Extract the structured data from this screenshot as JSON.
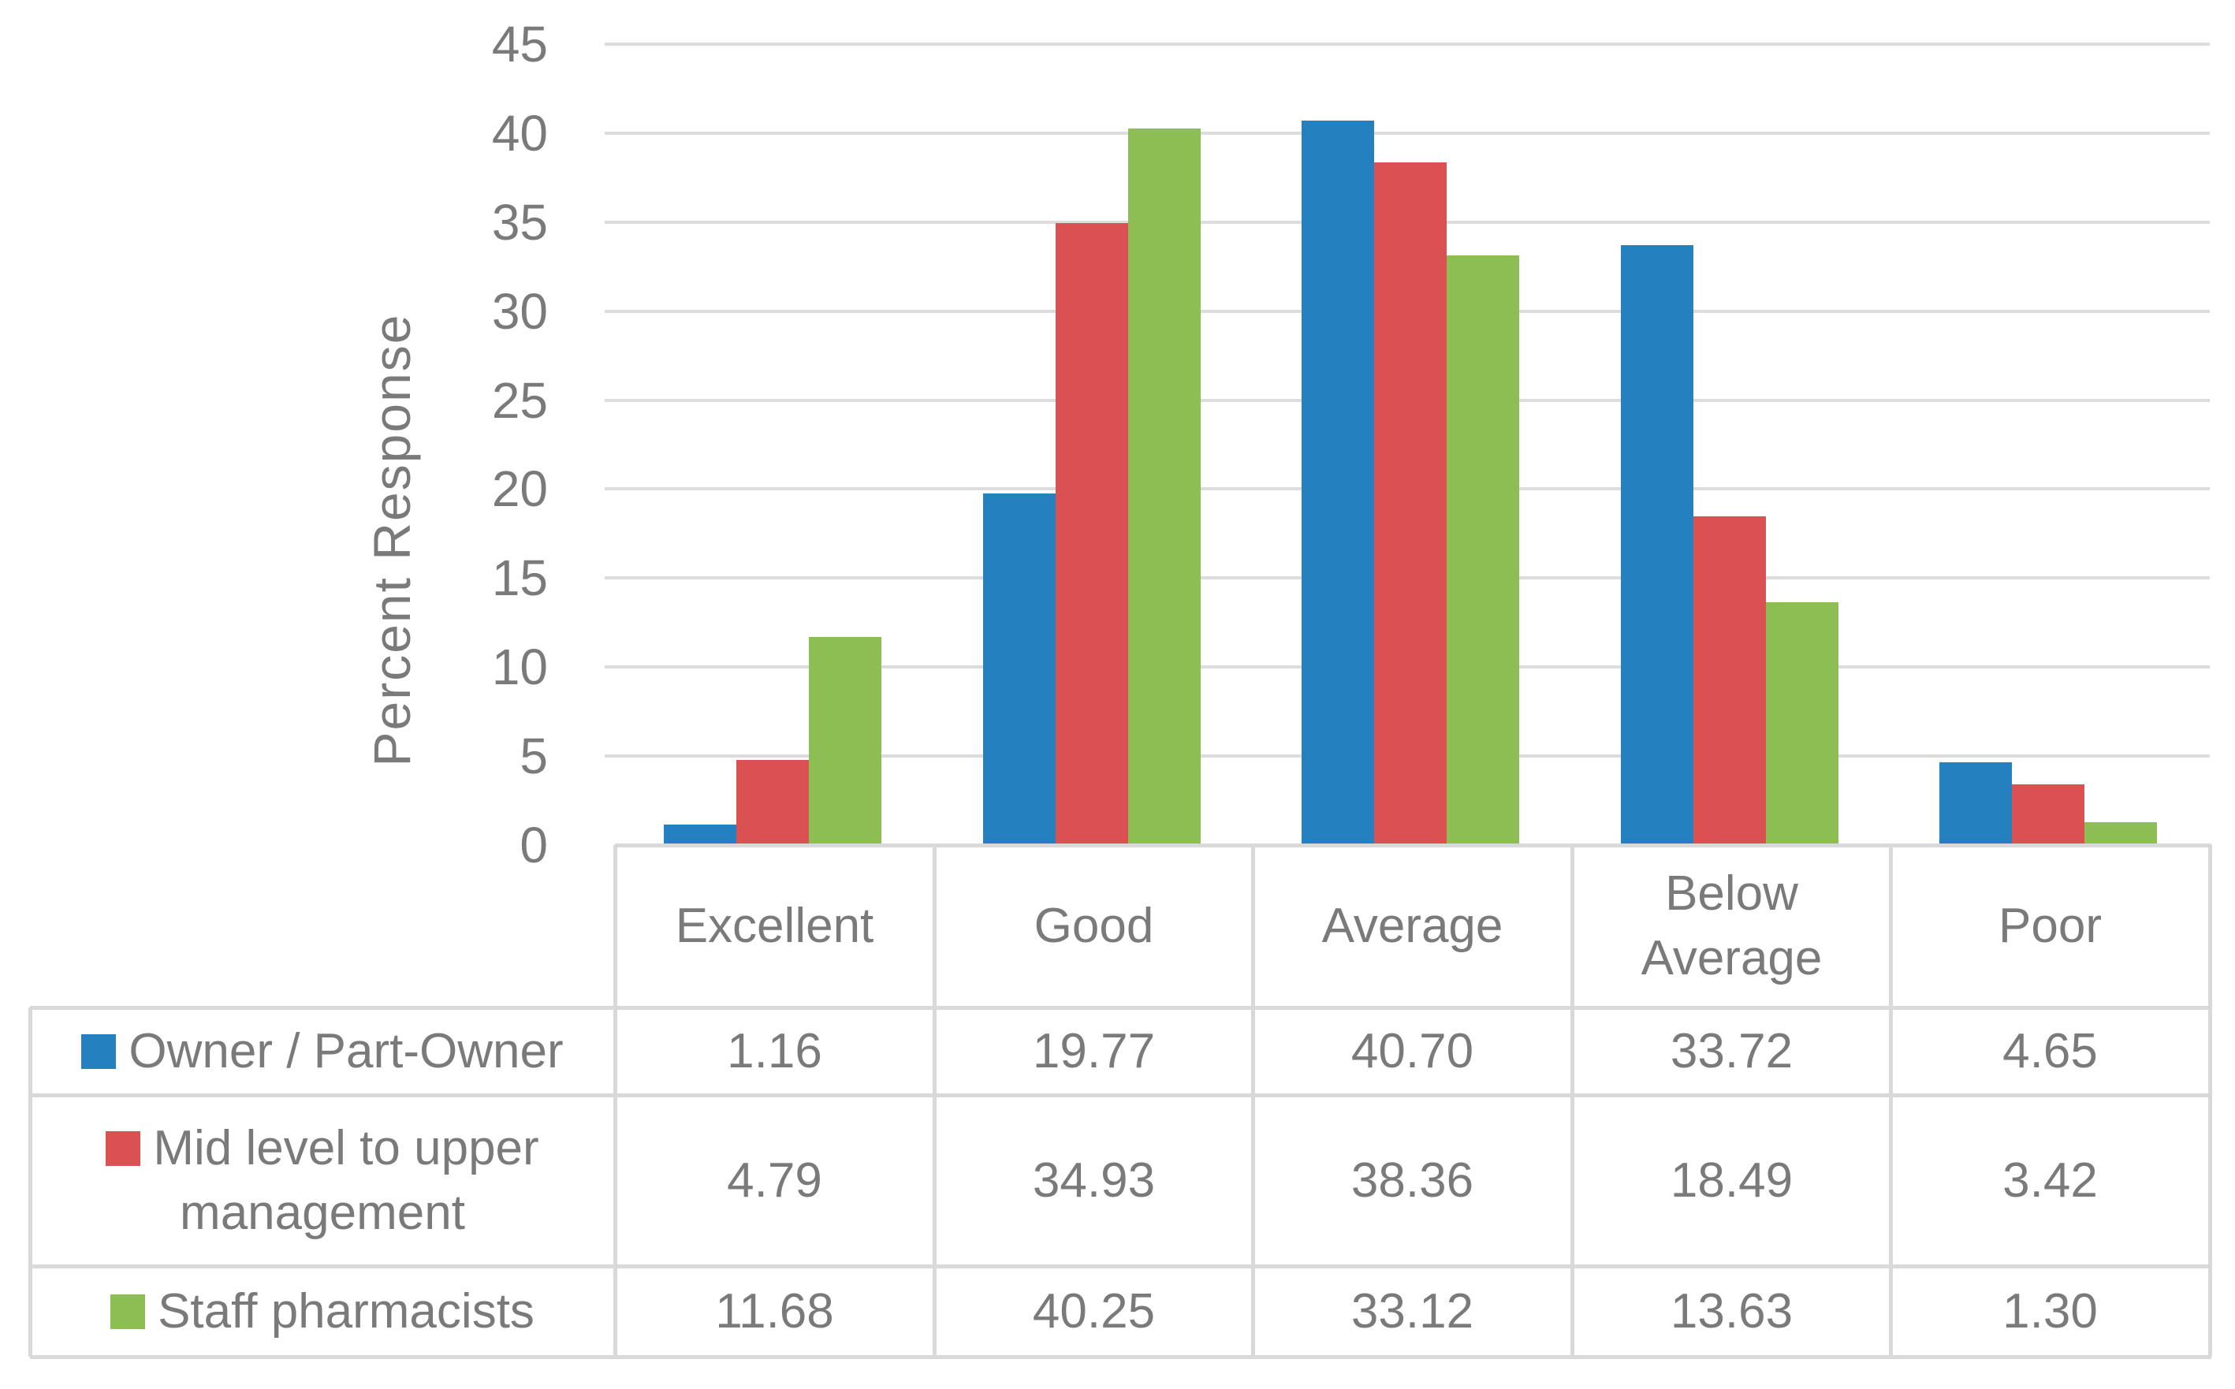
{
  "chart_data": {
    "type": "bar",
    "title": "",
    "xlabel": "",
    "ylabel": "Percent Response",
    "categories": [
      "Excellent",
      "Good",
      "Average",
      "Below Average",
      "Poor"
    ],
    "series": [
      {
        "name": "Owner / Part-Owner",
        "color": "#2480BE",
        "values": [
          1.16,
          19.77,
          40.7,
          33.72,
          4.65
        ]
      },
      {
        "name": "Mid level to upper management",
        "color": "#DB5151",
        "values": [
          4.79,
          34.93,
          38.36,
          18.49,
          3.42
        ]
      },
      {
        "name": "Staff pharmacists",
        "color": "#8CBE53",
        "values": [
          11.68,
          40.25,
          33.12,
          13.63,
          1.3
        ]
      }
    ],
    "ylim": [
      0,
      45
    ],
    "ytick_step": 5,
    "ytick_labels": [
      "0",
      "5",
      "10",
      "15",
      "20",
      "25",
      "30",
      "35",
      "40",
      "45"
    ],
    "grid": true,
    "legend_position": "data-table-row-headers",
    "value_decimals": 2,
    "colors": {
      "gridline": "#DCDCDC",
      "table_border": "#D9D9D9",
      "text": "#7A7A7A",
      "background": "#FFFFFF"
    }
  }
}
